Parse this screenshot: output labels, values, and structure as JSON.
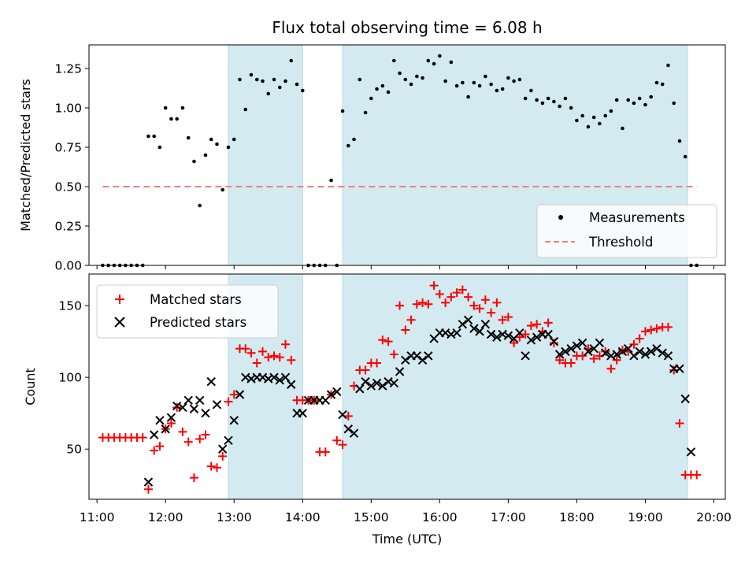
{
  "chart_data": [
    {
      "type": "scatter",
      "title": "Flux total observing time = 6.08 h",
      "xlabel": "",
      "ylabel": "Matched/Predicted stars",
      "xlim": [
        "10:53",
        "20:10"
      ],
      "ylim": [
        0.0,
        1.4
      ],
      "yticks": [
        0.0,
        0.25,
        0.5,
        0.75,
        1.0,
        1.25
      ],
      "ytick_labels": [
        "0.00",
        "0.25",
        "0.50",
        "0.75",
        "1.00",
        "1.25"
      ],
      "legend_position": "lower-right",
      "shaded_intervals": [
        [
          "12:55",
          "14:00"
        ],
        [
          "14:35",
          "19:37"
        ]
      ],
      "threshold": {
        "name": "Threshold",
        "value": 0.5,
        "x_range": [
          "11:05",
          "19:45"
        ],
        "color": "#f08080"
      },
      "series": [
        {
          "name": "Measurements",
          "color": "#000000",
          "marker": "dot",
          "x": [
            "11:05",
            "11:10",
            "11:15",
            "11:20",
            "11:25",
            "11:30",
            "11:35",
            "11:40",
            "11:45",
            "11:50",
            "11:55",
            "12:00",
            "12:05",
            "12:10",
            "12:15",
            "12:20",
            "12:25",
            "12:30",
            "12:35",
            "12:40",
            "12:45",
            "12:50",
            "12:55",
            "13:00",
            "13:05",
            "13:10",
            "13:15",
            "13:20",
            "13:25",
            "13:30",
            "13:35",
            "13:40",
            "13:45",
            "13:50",
            "13:55",
            "14:00",
            "14:05",
            "14:10",
            "14:15",
            "14:20",
            "14:25",
            "14:30",
            "14:35",
            "14:40",
            "14:45",
            "14:50",
            "14:55",
            "15:00",
            "15:05",
            "15:10",
            "15:15",
            "15:20",
            "15:25",
            "15:30",
            "15:35",
            "15:40",
            "15:45",
            "15:50",
            "15:55",
            "16:00",
            "16:05",
            "16:10",
            "16:15",
            "16:20",
            "16:25",
            "16:30",
            "16:35",
            "16:40",
            "16:45",
            "16:50",
            "16:55",
            "17:00",
            "17:05",
            "17:10",
            "17:15",
            "17:20",
            "17:25",
            "17:30",
            "17:35",
            "17:40",
            "17:45",
            "17:50",
            "17:55",
            "18:00",
            "18:05",
            "18:10",
            "18:15",
            "18:20",
            "18:25",
            "18:30",
            "18:35",
            "18:40",
            "18:45",
            "18:50",
            "18:55",
            "19:00",
            "19:05",
            "19:10",
            "19:15",
            "19:20",
            "19:25",
            "19:30",
            "19:35",
            "19:40",
            "19:45"
          ],
          "y": [
            0.0,
            0.0,
            0.0,
            0.0,
            0.0,
            0.0,
            0.0,
            0.0,
            0.82,
            0.82,
            0.75,
            1.0,
            0.93,
            0.93,
            1.0,
            0.81,
            0.66,
            0.38,
            0.7,
            0.8,
            0.77,
            0.48,
            0.75,
            0.8,
            1.18,
            0.99,
            1.21,
            1.18,
            1.17,
            1.09,
            1.18,
            1.13,
            1.17,
            1.3,
            1.15,
            1.11,
            0.0,
            0.0,
            0.0,
            0.0,
            0.54,
            0.0,
            0.98,
            0.76,
            0.8,
            1.18,
            0.97,
            1.06,
            1.12,
            1.14,
            1.1,
            1.3,
            1.22,
            1.18,
            1.15,
            1.2,
            1.19,
            1.3,
            1.28,
            1.33,
            1.17,
            1.29,
            1.14,
            1.16,
            1.07,
            1.16,
            1.14,
            1.2,
            1.15,
            1.11,
            1.12,
            1.19,
            1.17,
            1.18,
            1.06,
            1.11,
            1.05,
            1.03,
            1.06,
            1.04,
            1.01,
            1.06,
            1.0,
            0.92,
            0.95,
            0.88,
            0.94,
            0.9,
            0.95,
            0.98,
            1.05,
            0.87,
            1.05,
            1.03,
            1.06,
            1.02,
            1.07,
            1.16,
            1.15,
            1.27,
            1.03,
            0.79,
            0.69,
            0.0,
            0.0
          ]
        }
      ]
    },
    {
      "type": "scatter",
      "title": "",
      "xlabel": "Time (UTC)",
      "ylabel": "Count",
      "xlim": [
        "10:53",
        "20:10"
      ],
      "ylim": [
        15,
        172
      ],
      "yticks": [
        50,
        100,
        150
      ],
      "ytick_labels": [
        "50",
        "100",
        "150"
      ],
      "xticks": [
        "11:00",
        "12:00",
        "13:00",
        "14:00",
        "15:00",
        "16:00",
        "17:00",
        "18:00",
        "19:00",
        "20:00"
      ],
      "legend_position": "upper-left",
      "shaded_intervals": [
        [
          "12:55",
          "14:00"
        ],
        [
          "14:35",
          "19:37"
        ]
      ],
      "series": [
        {
          "name": "Matched stars",
          "color": "#ff0000",
          "marker": "plus",
          "x": [
            "11:05",
            "11:10",
            "11:15",
            "11:20",
            "11:25",
            "11:30",
            "11:35",
            "11:40",
            "11:45",
            "11:50",
            "11:55",
            "12:00",
            "12:05",
            "12:10",
            "12:15",
            "12:20",
            "12:25",
            "12:30",
            "12:35",
            "12:40",
            "12:45",
            "12:50",
            "12:55",
            "13:00",
            "13:05",
            "13:10",
            "13:15",
            "13:20",
            "13:25",
            "13:30",
            "13:35",
            "13:40",
            "13:45",
            "13:50",
            "13:55",
            "14:00",
            "14:05",
            "14:10",
            "14:15",
            "14:20",
            "14:25",
            "14:30",
            "14:35",
            "14:40",
            "14:45",
            "14:50",
            "14:55",
            "15:00",
            "15:05",
            "15:10",
            "15:15",
            "15:20",
            "15:25",
            "15:30",
            "15:35",
            "15:40",
            "15:45",
            "15:50",
            "15:55",
            "16:00",
            "16:05",
            "16:10",
            "16:15",
            "16:20",
            "16:25",
            "16:30",
            "16:35",
            "16:40",
            "16:45",
            "16:50",
            "16:55",
            "17:00",
            "17:05",
            "17:10",
            "17:15",
            "17:20",
            "17:25",
            "17:30",
            "17:35",
            "17:40",
            "17:45",
            "17:50",
            "17:55",
            "18:00",
            "18:05",
            "18:10",
            "18:15",
            "18:20",
            "18:25",
            "18:30",
            "18:35",
            "18:40",
            "18:45",
            "18:50",
            "18:55",
            "19:00",
            "19:05",
            "19:10",
            "19:15",
            "19:20",
            "19:25",
            "19:30",
            "19:35",
            "19:40",
            "19:45"
          ],
          "y": [
            58,
            58,
            58,
            58,
            58,
            58,
            58,
            58,
            22,
            49,
            52,
            64,
            68,
            79,
            62,
            55,
            30,
            57,
            60,
            38,
            37,
            45,
            83,
            88,
            120,
            120,
            117,
            110,
            118,
            114,
            115,
            114,
            123,
            112,
            84,
            84,
            84,
            84,
            48,
            48,
            88,
            56,
            53,
            73,
            94,
            105,
            105,
            110,
            110,
            126,
            125,
            116,
            150,
            133,
            140,
            151,
            152,
            151,
            164,
            158,
            152,
            156,
            159,
            161,
            156,
            150,
            148,
            154,
            145,
            152,
            140,
            142,
            124,
            128,
            130,
            136,
            137,
            132,
            138,
            124,
            112,
            110,
            110,
            115,
            115,
            120,
            113,
            115,
            118,
            106,
            112,
            119,
            118,
            123,
            127,
            132,
            133,
            134,
            135,
            135,
            105,
            68,
            32,
            32,
            32
          ]
        },
        {
          "name": "Predicted stars",
          "color": "#000000",
          "marker": "x",
          "x": [
            "11:45",
            "11:50",
            "11:55",
            "12:00",
            "12:05",
            "12:10",
            "12:15",
            "12:20",
            "12:25",
            "12:30",
            "12:35",
            "12:40",
            "12:45",
            "12:50",
            "12:55",
            "13:00",
            "13:05",
            "13:10",
            "13:15",
            "13:20",
            "13:25",
            "13:30",
            "13:35",
            "13:40",
            "13:45",
            "13:50",
            "13:55",
            "14:00",
            "14:05",
            "14:10",
            "14:15",
            "14:20",
            "14:25",
            "14:30",
            "14:35",
            "14:40",
            "14:45",
            "14:50",
            "14:55",
            "15:00",
            "15:05",
            "15:10",
            "15:15",
            "15:20",
            "15:25",
            "15:30",
            "15:35",
            "15:40",
            "15:45",
            "15:50",
            "15:55",
            "16:00",
            "16:05",
            "16:10",
            "16:15",
            "16:20",
            "16:25",
            "16:30",
            "16:35",
            "16:40",
            "16:45",
            "16:50",
            "16:55",
            "17:00",
            "17:05",
            "17:10",
            "17:15",
            "17:20",
            "17:25",
            "17:30",
            "17:35",
            "17:40",
            "17:45",
            "17:50",
            "17:55",
            "18:00",
            "18:05",
            "18:10",
            "18:15",
            "18:20",
            "18:25",
            "18:30",
            "18:35",
            "18:40",
            "18:45",
            "18:50",
            "18:55",
            "19:00",
            "19:05",
            "19:10",
            "19:15",
            "19:20",
            "19:25",
            "19:30",
            "19:35",
            "19:40"
          ],
          "y": [
            27,
            60,
            70,
            64,
            72,
            80,
            79,
            84,
            78,
            84,
            75,
            97,
            81,
            50,
            56,
            70,
            88,
            100,
            99,
            100,
            100,
            99,
            100,
            98,
            100,
            95,
            75,
            75,
            84,
            84,
            84,
            84,
            88,
            90,
            74,
            64,
            61,
            92,
            97,
            94,
            96,
            94,
            97,
            96,
            104,
            112,
            115,
            115,
            112,
            115,
            127,
            131,
            131,
            130,
            131,
            137,
            140,
            134,
            132,
            137,
            130,
            128,
            130,
            129,
            127,
            131,
            115,
            126,
            128,
            130,
            130,
            125,
            116,
            118,
            120,
            122,
            124,
            118,
            120,
            124,
            117,
            115,
            116,
            118,
            120,
            115,
            118,
            116,
            118,
            120,
            117,
            115,
            106,
            106,
            85,
            48
          ]
        }
      ]
    }
  ]
}
